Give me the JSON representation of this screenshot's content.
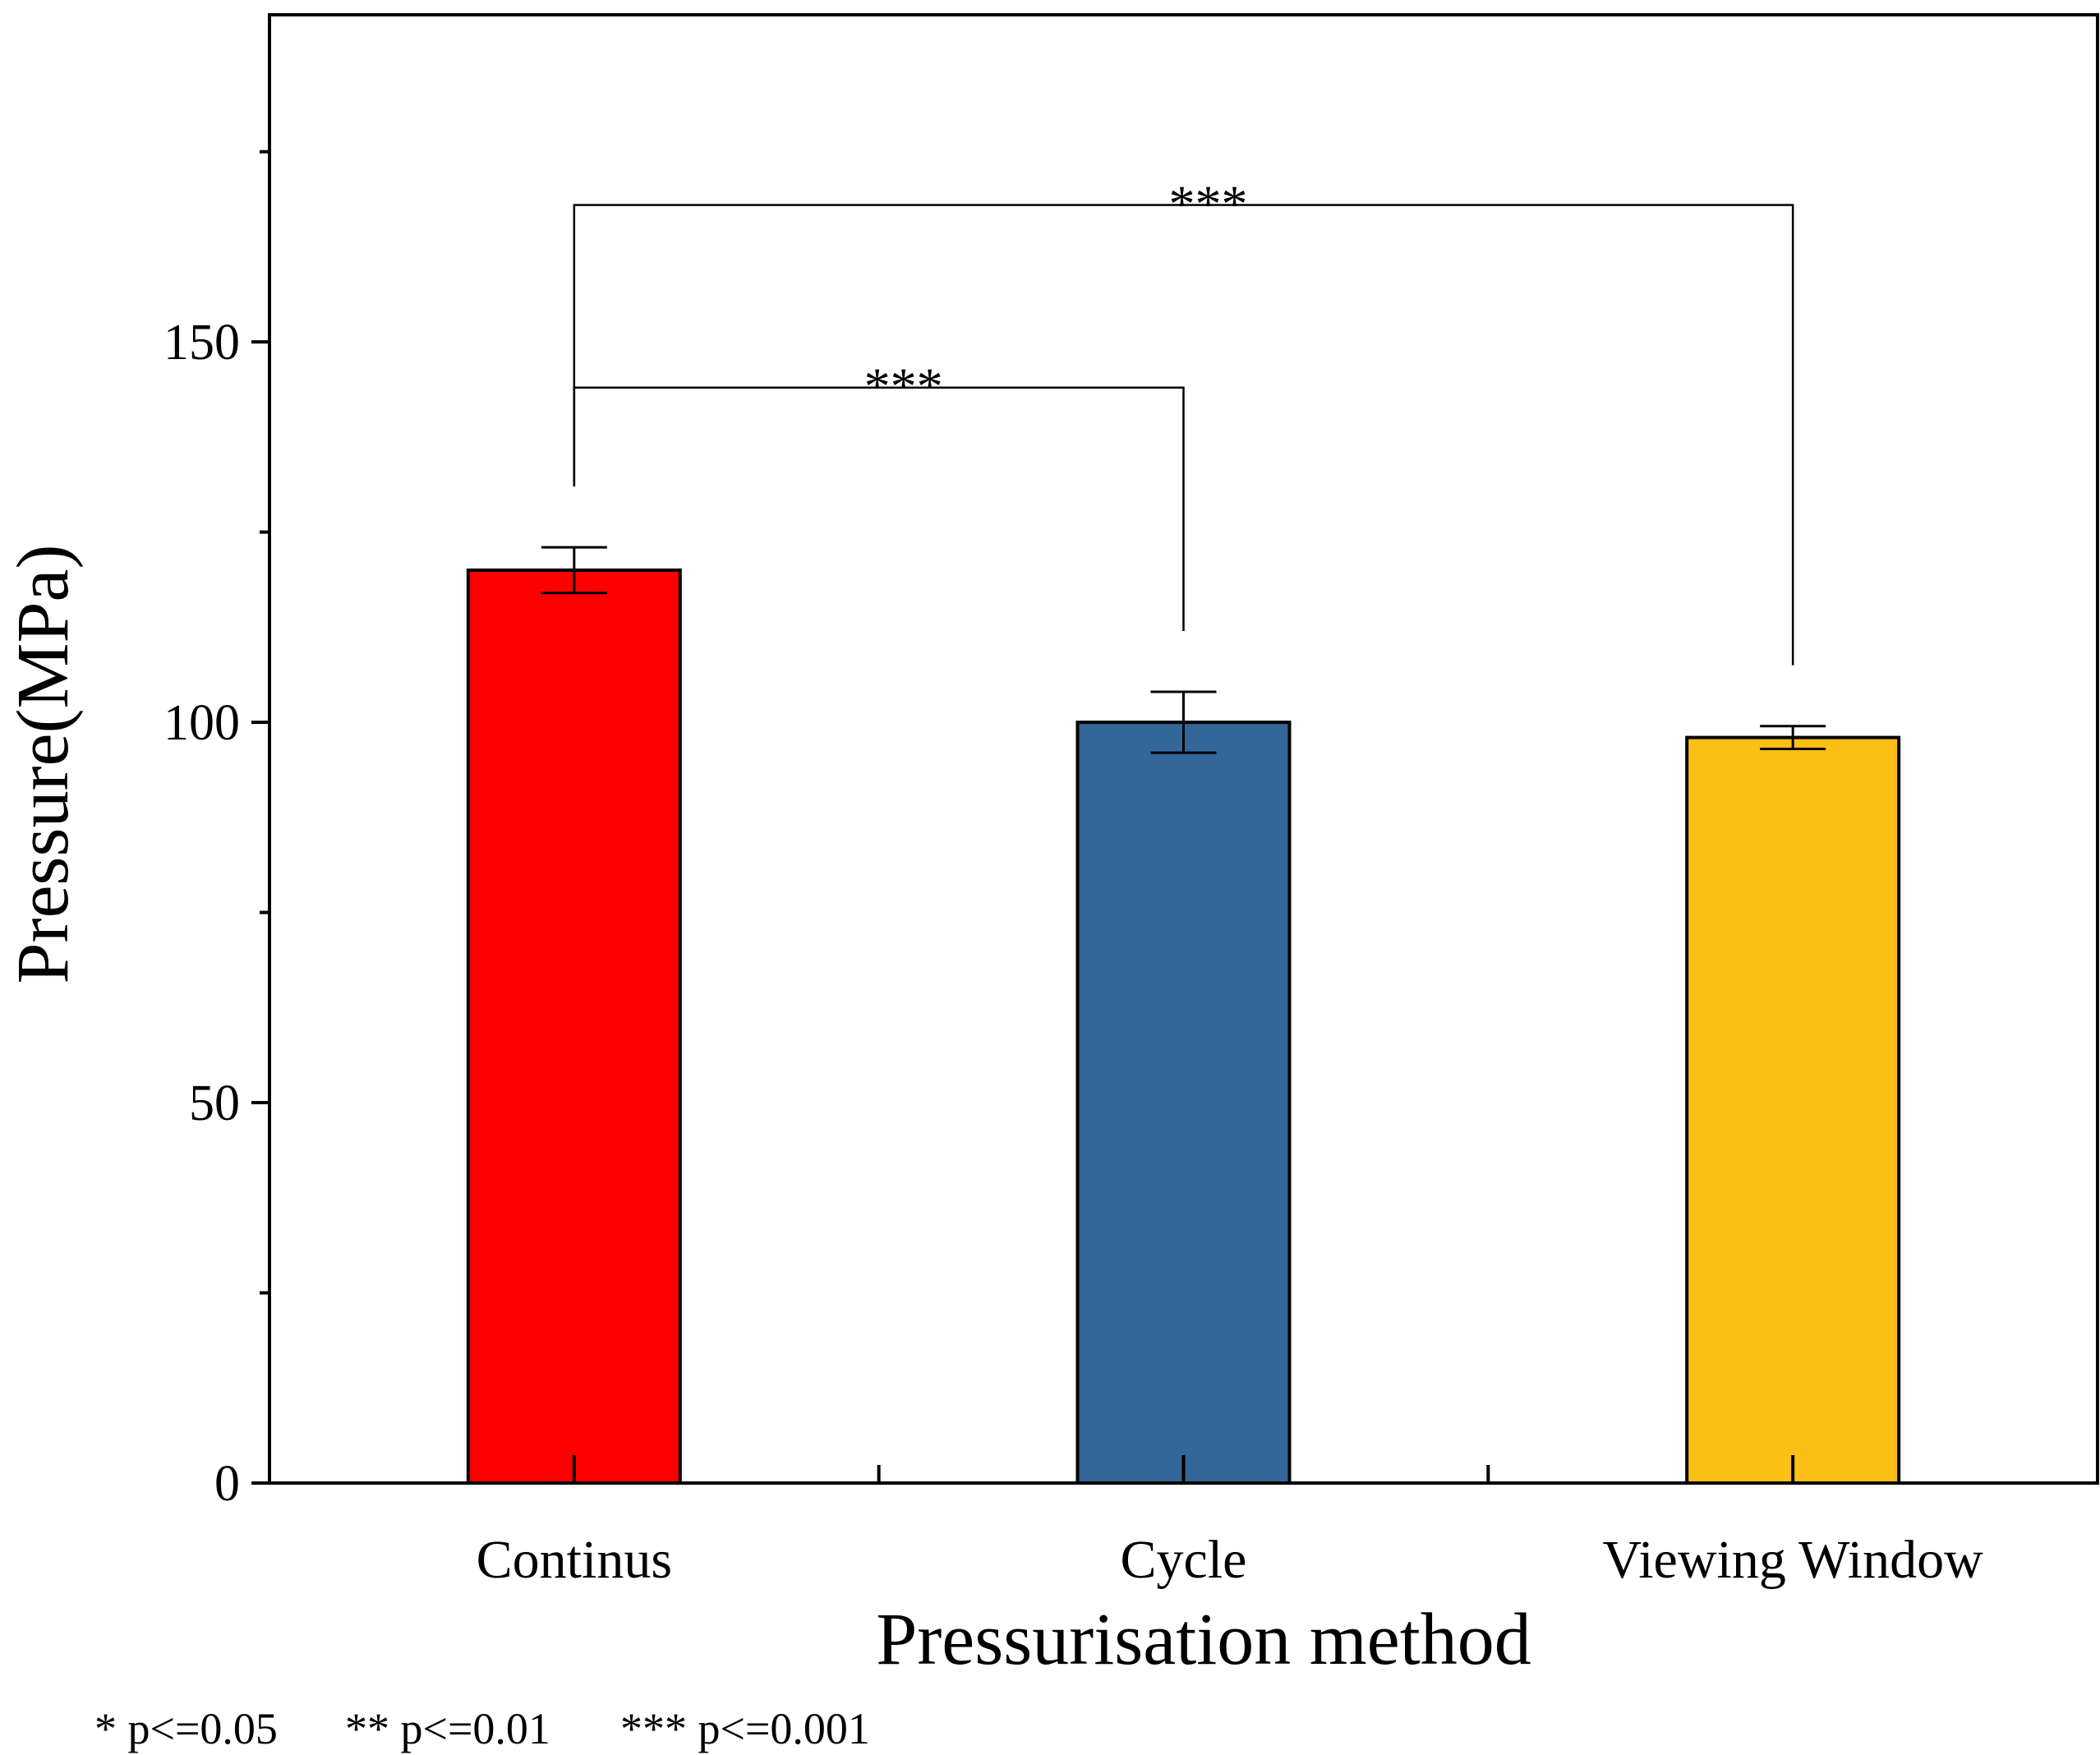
{
  "chart_data": {
    "type": "bar",
    "categories": [
      "Continus",
      "Cycle",
      "Viewing Window"
    ],
    "values": [
      120,
      100,
      98
    ],
    "errors": [
      3,
      4,
      1.5
    ],
    "colors": [
      "#ff0000",
      "#336699",
      "#fbbf15"
    ],
    "xlabel": "Pressurisation method",
    "ylabel": "Pressure(MPa)",
    "ylim": [
      0,
      193
    ],
    "yticks": [
      0,
      50,
      100,
      150
    ],
    "yticks_minor": [
      25,
      75,
      125,
      175
    ],
    "significance": [
      {
        "from": 0,
        "to": 1,
        "label": "***",
        "y": 144
      },
      {
        "from": 0,
        "to": 2,
        "label": "***",
        "y": 168
      }
    ],
    "footnote": [
      "* p<=0.05",
      "** p<=0.01",
      "*** p<=0.001"
    ]
  }
}
